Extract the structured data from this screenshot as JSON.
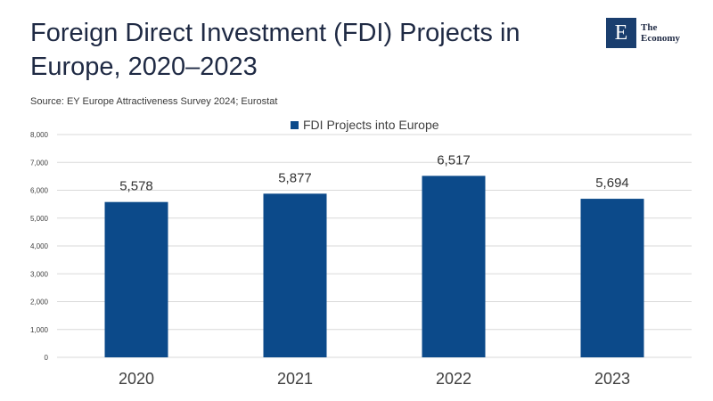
{
  "title": "Foreign Direct Investment (FDI) Projects in Europe, 2020–2023",
  "source": "Source: EY Europe Attractiveness Survey 2024; Eurostat",
  "logo": {
    "mark": "E",
    "line1": "The",
    "line2": "Economy"
  },
  "colors": {
    "bar": "#0c4a8a",
    "grid": "#d9d9d9",
    "axis_text": "#404040"
  },
  "chart_data": {
    "type": "bar",
    "title": "Foreign Direct Investment (FDI) Projects in Europe, 2020–2023",
    "categories": [
      "2020",
      "2021",
      "2022",
      "2023"
    ],
    "series": [
      {
        "name": "FDI Projects into Europe",
        "values": [
          5578,
          5877,
          6517,
          5694
        ]
      }
    ],
    "data_labels": [
      "5,578",
      "5,877",
      "6,517",
      "5,694"
    ],
    "ylim": [
      0,
      8000
    ],
    "yticks": [
      0,
      1000,
      2000,
      3000,
      4000,
      5000,
      6000,
      7000,
      8000
    ],
    "ytick_labels": [
      "0",
      "1,000",
      "2,000",
      "3,000",
      "4,000",
      "5,000",
      "6,000",
      "7,000",
      "8,000"
    ],
    "xlabel": "",
    "ylabel": "",
    "grid": true,
    "legend": "top"
  }
}
